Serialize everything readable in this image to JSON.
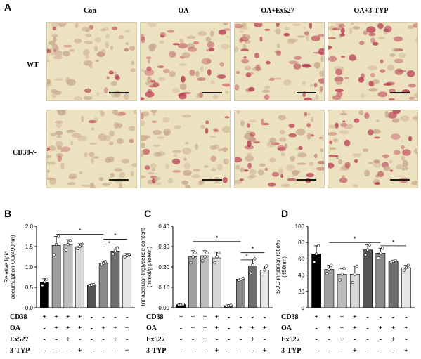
{
  "figure": {
    "panel_labels": [
      "A",
      "B",
      "C",
      "D"
    ],
    "column_labels": [
      "Con",
      "OA",
      "OA+Ex527",
      "OA+3-TYP"
    ],
    "row_labels": [
      "WT",
      "CD38-/-"
    ],
    "condition_table": {
      "rows": [
        {
          "label": "CD38",
          "signs": [
            "+",
            "+",
            "+",
            "+",
            "-",
            "-",
            "-",
            "-"
          ]
        },
        {
          "label": "OA",
          "signs": [
            "-",
            "+",
            "+",
            "+",
            "-",
            "+",
            "+",
            "+"
          ]
        },
        {
          "label": "Ex527",
          "signs": [
            "-",
            "-",
            "+",
            "-",
            "-",
            "-",
            "+",
            "-"
          ]
        },
        {
          "label": "3-TYP",
          "signs": [
            "-",
            "-",
            "-",
            "+",
            "-",
            "-",
            "-",
            "+"
          ]
        }
      ]
    },
    "colors": {
      "bar_fills": [
        "#000000",
        "#9e9e9e",
        "#bdbdbd",
        "#d6d6d6",
        "#555555",
        "#8a8a8a",
        "#6e6e6e",
        "#e6e6e6"
      ],
      "micro_bg": "#ece2c0",
      "stain": "#b83a52"
    }
  },
  "chart_data": [
    {
      "type": "bar",
      "panel": "B",
      "ylabel": "Relative lipid accumulation OD(490nm)",
      "ylim": [
        0,
        2.0
      ],
      "yticks": [
        "0.0",
        "0.5",
        "1.0",
        "1.5",
        "2.0"
      ],
      "values": [
        0.63,
        1.53,
        1.55,
        1.5,
        0.56,
        1.09,
        1.39,
        1.28
      ],
      "errors": [
        0.08,
        0.22,
        0.12,
        0.07,
        0.02,
        0.05,
        0.1,
        0.05
      ],
      "points": [
        [
          0.55,
          0.63,
          0.7
        ],
        [
          1.3,
          1.55,
          1.75
        ],
        [
          1.42,
          1.55,
          1.65
        ],
        [
          1.45,
          1.5,
          1.56
        ],
        [
          0.55,
          0.56,
          0.57
        ],
        [
          1.06,
          1.09,
          1.13
        ],
        [
          1.32,
          1.4,
          1.47
        ],
        [
          1.25,
          1.28,
          1.31
        ]
      ],
      "sig": [
        {
          "from": 1,
          "to": 5,
          "level": 1.8,
          "label": "*"
        },
        {
          "from": 5,
          "to": 7,
          "level": 1.68,
          "label": "*"
        },
        {
          "from": 5,
          "to": 6,
          "level": 1.49,
          "label": "*"
        }
      ]
    },
    {
      "type": "bar",
      "panel": "C",
      "ylabel": "Intracellular triglyceride content (mmol/g protein)",
      "ylim": [
        0,
        0.4
      ],
      "yticks": [
        "0.00",
        "0.10",
        "0.20",
        "0.30",
        "0.40"
      ],
      "values": [
        0.015,
        0.25,
        0.255,
        0.245,
        0.01,
        0.14,
        0.205,
        0.185
      ],
      "errors": [
        0.004,
        0.03,
        0.025,
        0.028,
        0.004,
        0.006,
        0.035,
        0.02
      ],
      "points": [
        [
          0.013,
          0.015,
          0.017
        ],
        [
          0.22,
          0.25,
          0.27
        ],
        [
          0.23,
          0.25,
          0.27
        ],
        [
          0.22,
          0.25,
          0.27
        ],
        [
          0.008,
          0.01,
          0.012
        ],
        [
          0.135,
          0.14,
          0.145
        ],
        [
          0.17,
          0.21,
          0.24
        ],
        [
          0.165,
          0.185,
          0.205
        ]
      ],
      "sig": [
        {
          "from": 1,
          "to": 5,
          "level": 0.325,
          "label": "*"
        },
        {
          "from": 5,
          "to": 7,
          "level": 0.27,
          "label": "*"
        },
        {
          "from": 5,
          "to": 6,
          "level": 0.235,
          "label": "*"
        }
      ]
    },
    {
      "type": "bar",
      "panel": "D",
      "ylabel": "SOD inhibition ratio% (450nm)",
      "ylim": [
        0,
        100
      ],
      "yticks": [
        "0",
        "20",
        "40",
        "60",
        "80",
        "100"
      ],
      "values": [
        66,
        47,
        41,
        41,
        71,
        67,
        57,
        49
      ],
      "errors": [
        10,
        5,
        7,
        10,
        6,
        6,
        1,
        3
      ],
      "points": [
        [
          56,
          66,
          76
        ],
        [
          42,
          47,
          52
        ],
        [
          34,
          41,
          48
        ],
        [
          31,
          41,
          51
        ],
        [
          65,
          71,
          77
        ],
        [
          61,
          67,
          73
        ],
        [
          56,
          57,
          58
        ],
        [
          46,
          49,
          52
        ]
      ],
      "sig": [
        {
          "from": 1,
          "to": 5,
          "level": 80,
          "label": "*"
        },
        {
          "from": 5,
          "to": 7,
          "level": 76,
          "label": "*"
        }
      ]
    }
  ]
}
